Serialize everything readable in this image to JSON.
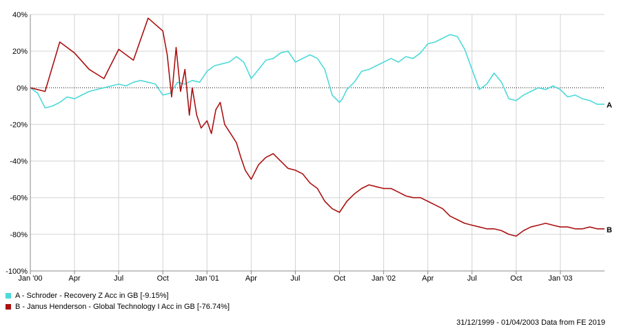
{
  "chart_data": {
    "type": "line",
    "x_tick_labels": [
      "Jan '00",
      "Apr",
      "Jul",
      "Oct",
      "Jan '01",
      "Apr",
      "Jul",
      "Oct",
      "Jan '02",
      "Apr",
      "Jul",
      "Oct",
      "Jan '03"
    ],
    "x_ticks_months": [
      0,
      3,
      6,
      9,
      12,
      15,
      18,
      21,
      24,
      27,
      30,
      33,
      36
    ],
    "xlim_months": [
      0,
      39
    ],
    "y_tick_labels": [
      "40%",
      "20%",
      "0%",
      "-20%",
      "-40%",
      "-60%",
      "-80%",
      "-100%"
    ],
    "y_ticks": [
      40,
      20,
      0,
      -20,
      -40,
      -60,
      -80,
      -100
    ],
    "ylim": [
      -100,
      40
    ],
    "grid": true,
    "zero_line": "dotted",
    "series": [
      {
        "name": "A - Schroder - Recovery Z Acc in GB [-9.15%]",
        "end_label": "A",
        "color": "#4dd9d9",
        "x_months": [
          0,
          0.5,
          1,
          1.5,
          2,
          2.5,
          3,
          3.5,
          4,
          4.5,
          5,
          5.5,
          6,
          6.5,
          7,
          7.5,
          8,
          8.5,
          9,
          9.5,
          10,
          10.5,
          11,
          11.5,
          12,
          12.5,
          13,
          13.5,
          14,
          14.5,
          15,
          15.5,
          16,
          16.5,
          17,
          17.5,
          18,
          18.5,
          19,
          19.5,
          20,
          20.5,
          21,
          21.2,
          21.5,
          22,
          22.5,
          23,
          23.5,
          24,
          24.5,
          25,
          25.5,
          26,
          26.5,
          27,
          27.5,
          28,
          28.5,
          29,
          29.5,
          30,
          30.5,
          31,
          31.5,
          32,
          32.5,
          33,
          33.5,
          34,
          34.5,
          35,
          35.5,
          36,
          36.5,
          37,
          37.5,
          38,
          38.5,
          39
        ],
        "values": [
          0,
          -3,
          -11,
          -10,
          -8,
          -5,
          -6,
          -4,
          -2,
          -1,
          0,
          1,
          2,
          1,
          3,
          4,
          3,
          2,
          -4,
          -3,
          3,
          2,
          4,
          3,
          9,
          12,
          13,
          14,
          17,
          14,
          5,
          10,
          15,
          16,
          19,
          20,
          14,
          16,
          18,
          16,
          10,
          -4,
          -8,
          -6,
          -1,
          3,
          9,
          10,
          12,
          14,
          16,
          14,
          17,
          16,
          19,
          24,
          25,
          27,
          29,
          28,
          21,
          10,
          -1,
          2,
          8,
          3,
          -6,
          -7,
          -4,
          -2,
          0,
          -1,
          1,
          -1,
          -5,
          -4,
          -6,
          -7,
          -9,
          -9
        ],
        "last_value": -9.15
      },
      {
        "name": "B - Janus Henderson - Global Technology I Acc in GB [-76.74%]",
        "end_label": "B",
        "color": "#aa1111",
        "x_months": [
          0,
          1,
          2,
          3,
          4,
          5,
          6,
          7,
          8,
          9,
          9.3,
          9.6,
          9.9,
          10.2,
          10.5,
          10.8,
          11,
          11.3,
          11.6,
          12,
          12.3,
          12.6,
          12.9,
          13.2,
          13.6,
          14,
          14.3,
          14.6,
          15,
          15.5,
          16,
          16.5,
          17,
          17.5,
          18,
          18.5,
          19,
          19.5,
          20,
          20.5,
          21,
          21.5,
          22,
          22.5,
          23,
          23.5,
          24,
          24.5,
          25,
          25.5,
          26,
          26.5,
          27,
          27.5,
          28,
          28.5,
          29,
          29.5,
          30,
          30.5,
          31,
          31.5,
          32,
          32.5,
          33,
          33.5,
          34,
          34.5,
          35,
          35.5,
          36,
          36.5,
          37,
          37.5,
          38,
          38.5,
          39
        ],
        "values": [
          0,
          -2,
          25,
          19,
          10,
          5,
          21,
          15,
          38,
          31,
          18,
          -5,
          22,
          -2,
          10,
          -15,
          0,
          -15,
          -22,
          -18,
          -25,
          -12,
          -8,
          -20,
          -25,
          -30,
          -38,
          -45,
          -50,
          -42,
          -38,
          -36,
          -40,
          -44,
          -45,
          -47,
          -52,
          -55,
          -62,
          -66,
          -68,
          -62,
          -58,
          -55,
          -53,
          -54,
          -55,
          -55,
          -57,
          -59,
          -60,
          -60,
          -62,
          -64,
          -66,
          -70,
          -72,
          -74,
          -75,
          -76,
          -77,
          -77,
          -78,
          -80,
          -81,
          -78,
          -76,
          -75,
          -74,
          -75,
          -76,
          -76,
          -77,
          -77,
          -76,
          -77,
          -77
        ],
        "last_value": -76.74
      }
    ]
  },
  "legend": {
    "a_label": "A - Schroder - Recovery Z Acc in GB [-9.15%]",
    "b_label": "B - Janus Henderson - Global Technology I Acc in GB [-76.74%]",
    "a_color": "#4dd9d9",
    "b_color": "#aa1111"
  },
  "footer": "31/12/1999 - 01/04/2003 Data from FE 2019"
}
